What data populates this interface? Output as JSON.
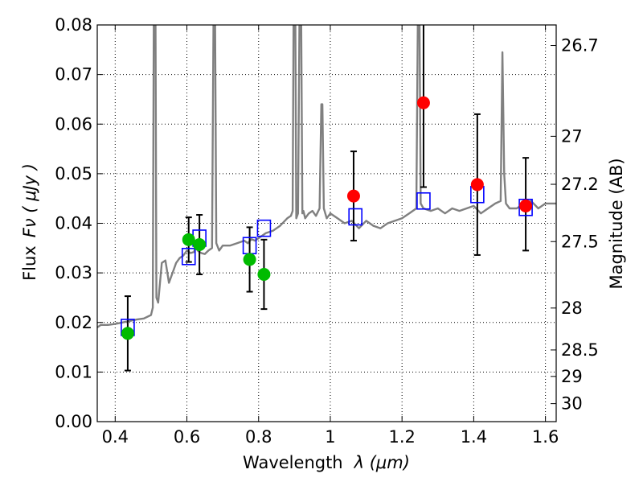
{
  "chart_data": {
    "type": "scatter",
    "title": "",
    "xlabel_text": "Wavelength",
    "xlabel_symbol": "λ (μm)",
    "ylabel_text": "Flux",
    "ylabel_symbol": "Fν ( μJy )",
    "ylabel_right": "Magnitude (AB)",
    "xlim": [
      0.35,
      1.63
    ],
    "ylim": [
      0.0,
      0.08
    ],
    "x_ticks": [
      0.4,
      0.6,
      0.8,
      1.0,
      1.2,
      1.4,
      1.6
    ],
    "x_tick_labels": [
      "0.4",
      "0.6",
      "0.8",
      "1",
      "1.2",
      "1.4",
      "1.6"
    ],
    "y_ticks": [
      0.0,
      0.01,
      0.02,
      0.03,
      0.04,
      0.05,
      0.06,
      0.07,
      0.08
    ],
    "y_tick_labels": [
      "0.00",
      "0.01",
      "0.02",
      "0.03",
      "0.04",
      "0.05",
      "0.06",
      "0.07",
      "0.08"
    ],
    "right_ticks": [
      {
        "label": "26.7",
        "value": 26.7
      },
      {
        "label": "27",
        "value": 27.0
      },
      {
        "label": "27.2",
        "value": 27.2
      },
      {
        "label": "27.5",
        "value": 27.5
      },
      {
        "label": "28",
        "value": 28.0
      },
      {
        "label": "28.5",
        "value": 28.5
      },
      {
        "label": "29",
        "value": 29.0
      },
      {
        "label": "30",
        "value": 30.0
      }
    ],
    "grid": true,
    "grid_style": "dotted",
    "colors": {
      "spectrum": "#808080",
      "model": "#0000ff",
      "optical": "#00bb00",
      "infrared": "#ff0000",
      "errorbar": "#000000"
    },
    "series": [
      {
        "kind": "line",
        "x": [
          0.35,
          0.36,
          0.38,
          0.4,
          0.42,
          0.44,
          0.46,
          0.48,
          0.5,
          0.505,
          0.508,
          0.512,
          0.515,
          0.52,
          0.53,
          0.54,
          0.55,
          0.56,
          0.57,
          0.58,
          0.59,
          0.6,
          0.61,
          0.62,
          0.625,
          0.63,
          0.64,
          0.65,
          0.66,
          0.67,
          0.675,
          0.678,
          0.682,
          0.69,
          0.7,
          0.72,
          0.74,
          0.76,
          0.77,
          0.78,
          0.79,
          0.8,
          0.81,
          0.82,
          0.84,
          0.86,
          0.88,
          0.89,
          0.895,
          0.898,
          0.902,
          0.905,
          0.91,
          0.915,
          0.918,
          0.922,
          0.925,
          0.93,
          0.94,
          0.95,
          0.96,
          0.97,
          0.975,
          0.978,
          0.982,
          0.99,
          1.0,
          1.02,
          1.04,
          1.06,
          1.08,
          1.1,
          1.12,
          1.14,
          1.16,
          1.18,
          1.2,
          1.22,
          1.24,
          1.245,
          1.248,
          1.252,
          1.26,
          1.28,
          1.3,
          1.32,
          1.34,
          1.36,
          1.38,
          1.4,
          1.42,
          1.44,
          1.46,
          1.475,
          1.48,
          1.485,
          1.49,
          1.5,
          1.52,
          1.54,
          1.56,
          1.58,
          1.6,
          1.62,
          1.63
        ],
        "y": [
          0.019,
          0.0195,
          0.0195,
          0.0197,
          0.02,
          0.0203,
          0.0206,
          0.0208,
          0.0215,
          0.023,
          0.09,
          0.09,
          0.025,
          0.024,
          0.032,
          0.0325,
          0.028,
          0.03,
          0.032,
          0.033,
          0.0335,
          0.0345,
          0.034,
          0.0342,
          0.0355,
          0.0345,
          0.034,
          0.0338,
          0.0345,
          0.035,
          0.09,
          0.09,
          0.036,
          0.0345,
          0.0355,
          0.0355,
          0.036,
          0.0365,
          0.036,
          0.0368,
          0.0365,
          0.037,
          0.0375,
          0.038,
          0.0385,
          0.0395,
          0.041,
          0.0415,
          0.0425,
          0.09,
          0.09,
          0.041,
          0.042,
          0.09,
          0.09,
          0.042,
          0.0425,
          0.041,
          0.042,
          0.0425,
          0.0415,
          0.043,
          0.064,
          0.064,
          0.043,
          0.041,
          0.042,
          0.041,
          0.04,
          0.0405,
          0.039,
          0.0405,
          0.0395,
          0.039,
          0.04,
          0.0405,
          0.041,
          0.042,
          0.043,
          0.09,
          0.09,
          0.044,
          0.043,
          0.0425,
          0.043,
          0.042,
          0.043,
          0.0425,
          0.043,
          0.0435,
          0.042,
          0.043,
          0.044,
          0.0445,
          0.0745,
          0.05,
          0.044,
          0.043,
          0.043,
          0.044,
          0.0445,
          0.043,
          0.044,
          0.044,
          0.044
        ]
      },
      {
        "kind": "model",
        "marker": "open-square",
        "x": [
          0.435,
          0.605,
          0.635,
          0.775,
          0.815,
          1.07,
          1.26,
          1.41,
          1.545
        ],
        "y": [
          0.019,
          0.0333,
          0.037,
          0.0355,
          0.039,
          0.0413,
          0.0445,
          0.0458,
          0.0432
        ]
      },
      {
        "kind": "observed",
        "marker": "filled-circle",
        "color_key": "optical",
        "x": [
          0.435,
          0.605,
          0.635,
          0.775,
          0.815
        ],
        "y": [
          0.0178,
          0.0367,
          0.0357,
          0.0327,
          0.0297
        ],
        "yerr_low": [
          0.0075,
          0.0045,
          0.006,
          0.0065,
          0.007
        ],
        "yerr_high": [
          0.0075,
          0.0045,
          0.006,
          0.0065,
          0.007
        ]
      },
      {
        "kind": "observed",
        "marker": "filled-circle",
        "color_key": "infrared",
        "x": [
          1.065,
          1.26,
          1.41,
          1.545
        ],
        "y": [
          0.0455,
          0.0643,
          0.0478,
          0.0435
        ],
        "yerr_low": [
          0.009,
          0.017,
          0.0142,
          0.009
        ],
        "yerr_high": [
          0.009,
          0.017,
          0.0142,
          0.0097
        ]
      }
    ]
  }
}
